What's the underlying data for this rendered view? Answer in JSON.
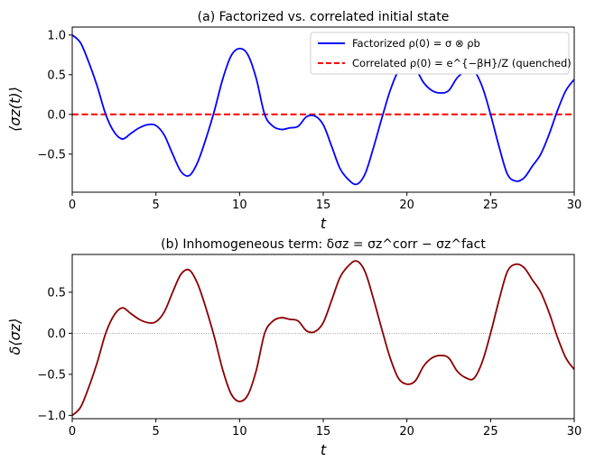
{
  "chart_data": [
    {
      "type": "line",
      "title": "(a) Factorized vs. correlated initial state",
      "xlabel": "t",
      "ylabel": "⟨σz(t)⟩",
      "xlim": [
        0,
        30
      ],
      "ylim": [
        -0.98,
        1.1
      ],
      "xticks": [
        "0",
        "5",
        "10",
        "15",
        "20",
        "25",
        "30"
      ],
      "yticks": [
        "1.0",
        "0.5",
        "0.0",
        "−0.5"
      ],
      "ytick_values": [
        1.0,
        0.5,
        0.0,
        -0.5
      ],
      "grid": false,
      "legend_position": "upper right",
      "series": [
        {
          "name": "Factorized ρ(0) = σ ⊗ ρb",
          "color": "#0000ff",
          "style": "solid",
          "x": [
            0,
            0.5,
            1,
            1.5,
            2,
            2.5,
            3,
            3.5,
            4,
            4.5,
            5,
            5.5,
            6,
            6.5,
            7,
            7.5,
            8,
            8.5,
            9,
            9.5,
            10,
            10.5,
            11,
            11.5,
            12,
            12.5,
            13,
            13.5,
            14,
            14.5,
            15,
            15.5,
            16,
            16.5,
            17,
            17.5,
            18,
            18.5,
            19,
            19.5,
            20,
            20.5,
            21,
            21.5,
            22,
            22.5,
            23,
            23.5,
            24,
            24.5,
            25,
            25.5,
            26,
            26.5,
            27,
            27.5,
            28,
            28.5,
            29,
            29.5,
            30
          ],
          "y": [
            1.0,
            0.9,
            0.65,
            0.35,
            0.0,
            -0.22,
            -0.31,
            -0.24,
            -0.17,
            -0.13,
            -0.14,
            -0.26,
            -0.5,
            -0.72,
            -0.77,
            -0.6,
            -0.3,
            0.05,
            0.45,
            0.74,
            0.83,
            0.75,
            0.45,
            0.0,
            -0.15,
            -0.19,
            -0.17,
            -0.15,
            -0.03,
            -0.02,
            -0.13,
            -0.4,
            -0.68,
            -0.82,
            -0.88,
            -0.75,
            -0.42,
            -0.05,
            0.3,
            0.55,
            0.62,
            0.58,
            0.4,
            0.3,
            0.27,
            0.3,
            0.46,
            0.54,
            0.55,
            0.35,
            0.0,
            -0.4,
            -0.75,
            -0.84,
            -0.8,
            -0.65,
            -0.5,
            -0.25,
            0.05,
            0.3,
            0.44
          ]
        },
        {
          "name": "Correlated ρ(0) = e^{−βH}/Z (quenched)",
          "color": "#ff0000",
          "style": "dashed",
          "x": [
            0,
            30
          ],
          "y": [
            0,
            0
          ]
        }
      ]
    },
    {
      "type": "line",
      "title": "(b) Inhomogeneous term: δσz = σz^corr − σz^fact",
      "xlabel": "t",
      "ylabel": "δ⟨σz⟩",
      "xlim": [
        0,
        30
      ],
      "ylim": [
        -1.04,
        0.96
      ],
      "xticks": [
        "0",
        "5",
        "10",
        "15",
        "20",
        "25",
        "30"
      ],
      "yticks": [
        "0.5",
        "0.0",
        "−0.5",
        "−1.0"
      ],
      "ytick_values": [
        0.5,
        0.0,
        -0.5,
        -1.0
      ],
      "grid": false,
      "series": [
        {
          "name": "",
          "color": "#8b0000",
          "style": "solid",
          "x": [
            0,
            0.5,
            1,
            1.5,
            2,
            2.5,
            3,
            3.5,
            4,
            4.5,
            5,
            5.5,
            6,
            6.5,
            7,
            7.5,
            8,
            8.5,
            9,
            9.5,
            10,
            10.5,
            11,
            11.5,
            12,
            12.5,
            13,
            13.5,
            14,
            14.5,
            15,
            15.5,
            16,
            16.5,
            17,
            17.5,
            18,
            18.5,
            19,
            19.5,
            20,
            20.5,
            21,
            21.5,
            22,
            22.5,
            23,
            23.5,
            24,
            24.5,
            25,
            25.5,
            26,
            26.5,
            27,
            27.5,
            28,
            28.5,
            29,
            29.5,
            30
          ],
          "y": [
            -1.0,
            -0.9,
            -0.65,
            -0.35,
            0.0,
            0.22,
            0.31,
            0.24,
            0.17,
            0.13,
            0.14,
            0.26,
            0.5,
            0.72,
            0.77,
            0.6,
            0.3,
            -0.05,
            -0.45,
            -0.74,
            -0.83,
            -0.75,
            -0.45,
            0.0,
            0.15,
            0.19,
            0.17,
            0.15,
            0.03,
            0.02,
            0.13,
            0.4,
            0.68,
            0.82,
            0.88,
            0.75,
            0.42,
            0.05,
            -0.3,
            -0.55,
            -0.62,
            -0.58,
            -0.4,
            -0.3,
            -0.27,
            -0.3,
            -0.46,
            -0.54,
            -0.55,
            -0.35,
            0.0,
            0.4,
            0.75,
            0.84,
            0.8,
            0.65,
            0.5,
            0.25,
            -0.05,
            -0.3,
            -0.44
          ]
        },
        {
          "name": "",
          "color": "#808080",
          "style": "dotted",
          "x": [
            0,
            30
          ],
          "y": [
            0,
            0
          ]
        }
      ]
    }
  ]
}
